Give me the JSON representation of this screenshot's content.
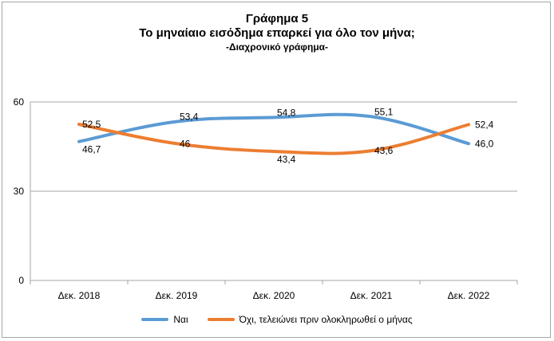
{
  "chart_data": {
    "type": "line",
    "title": "Γράφημα 5",
    "subtitle": "Το μηναίαιο εισόδημα επαρκεί για όλο τον μήνα;",
    "note": "-Διαχρονικό γράφημα-",
    "categories": [
      "Δεκ. 2018",
      "Δεκ. 2019",
      "Δεκ. 2020",
      "Δεκ. 2021",
      "Δεκ. 2022"
    ],
    "ylim": [
      0,
      60
    ],
    "yticks": [
      0,
      30,
      60
    ],
    "grid": true,
    "legend_position": "bottom",
    "series": [
      {
        "name": "Ναι",
        "color": "#5b9bd5",
        "values": [
          46.7,
          53.4,
          54.8,
          55.1,
          46.0
        ],
        "labels": [
          "46,7",
          "53,4",
          "54,8",
          "55,1",
          "46,0"
        ]
      },
      {
        "name": "Όχι, τελειώνει πριν ολοκληρωθεί ο μήνας",
        "color": "#ed7d31",
        "values": [
          52.5,
          46,
          43.4,
          43.6,
          52.4
        ],
        "labels": [
          "52,5",
          "46",
          "43,4",
          "43,6",
          "52,4"
        ]
      }
    ]
  }
}
